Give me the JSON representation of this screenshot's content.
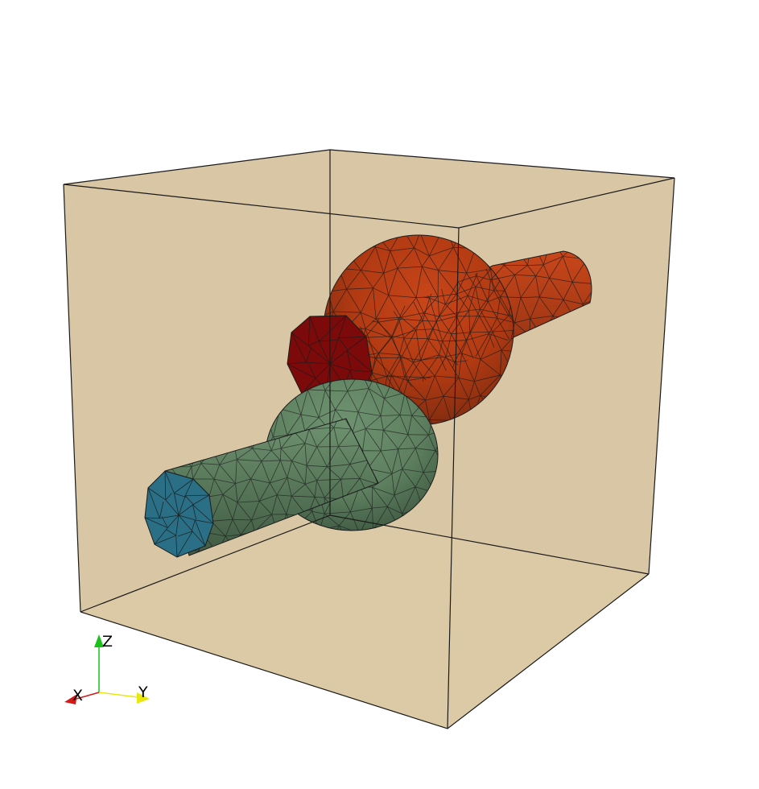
{
  "view": {
    "background": "#ffffff"
  },
  "colors": {
    "box_back_face": "#d8c6a5",
    "box_floor": "#dccaa7",
    "box_front": "#e4ceaa",
    "box_edge": "#1a1a1a",
    "red_body": "#b23a12",
    "red_body_light": "#c9461a",
    "red_body_dark": "#7a2a10",
    "red_cap": "#7d0a0a",
    "green_body": "#5e8060",
    "green_body_light": "#6f9370",
    "green_body_dark": "#3f5a42",
    "blue_cap": "#2a6f86",
    "mesh_line": "#1b1b1b",
    "axis_x": "#d11a1a",
    "axis_y": "#e8e80a",
    "axis_z": "#19c119"
  },
  "objects": {
    "bounding_box": "transparent-cube",
    "red_part": "sphere-with-tube",
    "green_part": "sphere-with-tube"
  },
  "axes": {
    "x_label": "X",
    "y_label": "Y",
    "z_label": "Z"
  }
}
